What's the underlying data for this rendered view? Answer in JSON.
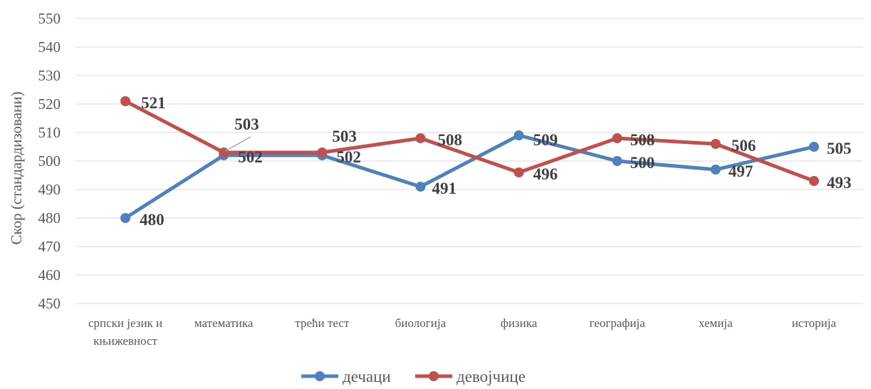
{
  "chart_data": {
    "type": "line",
    "categories": [
      [
        "српски језик и",
        "књижевност"
      ],
      [
        "математика"
      ],
      [
        "трећи тест"
      ],
      [
        "биологија"
      ],
      [
        "физика"
      ],
      [
        "географија"
      ],
      [
        "хемија"
      ],
      [
        "историја"
      ]
    ],
    "series": [
      {
        "name": "дечаци",
        "color": "#4f81bd",
        "values": [
          480,
          502,
          502,
          491,
          509,
          500,
          497,
          505
        ],
        "labels": [
          "480",
          "502",
          "502",
          "491",
          "509",
          "500",
          "497",
          "505"
        ]
      },
      {
        "name": "девојчице",
        "color": "#c0504d",
        "values": [
          521,
          503,
          503,
          508,
          496,
          508,
          506,
          493
        ],
        "labels": [
          "521",
          "503",
          "503",
          "508",
          "496",
          "508",
          "506",
          "493"
        ]
      }
    ],
    "ylabel": "Скор (стандардизовани)",
    "xlabel": "",
    "ylim": [
      450,
      550
    ],
    "yticks": [
      450,
      460,
      470,
      480,
      490,
      500,
      510,
      520,
      530,
      540,
      550
    ],
    "grid": true,
    "legend_position": "bottom"
  }
}
